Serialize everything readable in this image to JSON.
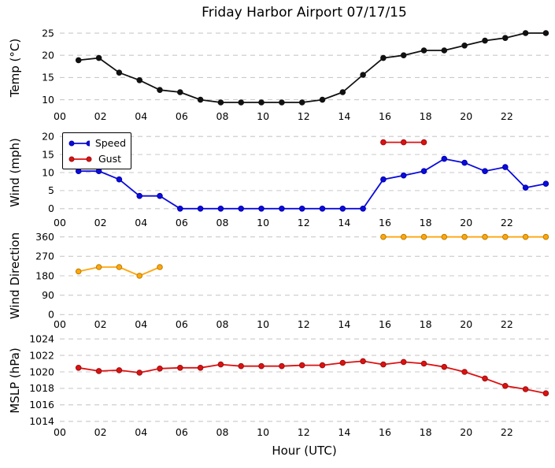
{
  "title": "Friday Harbor Airport 07/17/15",
  "xlabel": "Hour (UTC)",
  "legend": {
    "speed": "Speed",
    "gust": "Gust"
  },
  "colors": {
    "temp": "#111111",
    "speed": "#0b0bdd",
    "speed_edge": "#0000aa",
    "gust": "#dd1111",
    "gust_edge": "#991111",
    "direction": "#ffa60f",
    "direction_edge": "#b97d00",
    "mslp": "#dd1111",
    "mslp_edge": "#991111",
    "grid": "#c9c9c9",
    "tick_text": "#000000"
  },
  "chart_data": [
    {
      "type": "line",
      "ylabel": "Temp (°C)",
      "ylim": [
        7.8,
        26.6
      ],
      "yticks": [
        25,
        20,
        15,
        10
      ],
      "grid": true,
      "legend_position": null,
      "xlim": [
        0,
        24.06
      ],
      "xtick_values": [
        0,
        2,
        4,
        6,
        8,
        10,
        12,
        14,
        16,
        18,
        20,
        22
      ],
      "xtick_labels": [
        "00",
        "02",
        "04",
        "06",
        "08",
        "10",
        "12",
        "14",
        "16",
        "18",
        "20",
        "22"
      ],
      "x": [
        0.92,
        1.92,
        2.92,
        3.92,
        4.92,
        5.92,
        6.92,
        7.92,
        8.92,
        9.92,
        10.92,
        11.92,
        12.92,
        13.92,
        14.92,
        15.92,
        16.92,
        17.92,
        18.92,
        19.92,
        20.92,
        21.92,
        22.92,
        23.92
      ],
      "series": [
        {
          "name": "temp",
          "color_key": "temp",
          "edge_key": "temp",
          "values": [
            18.9,
            19.4,
            16.1,
            14.4,
            12.2,
            11.7,
            10.0,
            9.4,
            9.4,
            9.4,
            9.4,
            9.4,
            10.0,
            11.7,
            15.6,
            19.4,
            20.0,
            21.1,
            21.1,
            22.2,
            23.3,
            23.9,
            25.0,
            25.0
          ]
        }
      ]
    },
    {
      "type": "line",
      "ylabel": "Wind (mph)",
      "ylim": [
        -1.8,
        21.8
      ],
      "yticks": [
        20,
        15,
        10,
        5,
        0
      ],
      "grid": true,
      "legend_position": "upper left",
      "xlim": [
        0,
        24.06
      ],
      "xtick_values": [
        0,
        2,
        4,
        6,
        8,
        10,
        12,
        14,
        16,
        18,
        20,
        22
      ],
      "xtick_labels": [
        "00",
        "02",
        "04",
        "06",
        "08",
        "10",
        "12",
        "14",
        "16",
        "18",
        "20",
        "22"
      ],
      "x": [
        0.92,
        1.92,
        2.92,
        3.92,
        4.92,
        5.92,
        6.92,
        7.92,
        8.92,
        9.92,
        10.92,
        11.92,
        12.92,
        13.92,
        14.92,
        15.92,
        16.92,
        17.92,
        18.92,
        19.92,
        20.92,
        21.92,
        22.92,
        23.92
      ],
      "series": [
        {
          "name": "speed",
          "color_key": "speed",
          "edge_key": "speed_edge",
          "values": [
            10.4,
            10.4,
            8.1,
            3.5,
            3.5,
            0,
            0,
            0,
            0,
            0,
            0,
            0,
            0,
            0,
            0,
            8.1,
            9.2,
            10.4,
            13.8,
            12.7,
            10.4,
            11.5,
            5.8,
            6.9
          ]
        },
        {
          "name": "gust",
          "color_key": "gust",
          "edge_key": "gust_edge",
          "x": [
            15.92,
            16.92,
            17.92
          ],
          "values": [
            18.4,
            18.4,
            18.4
          ]
        }
      ]
    },
    {
      "type": "line",
      "ylabel": "Wind Direction",
      "ylim": [
        -28,
        388
      ],
      "yticks": [
        360,
        270,
        180,
        90,
        0
      ],
      "grid": true,
      "legend_position": null,
      "xlim": [
        0,
        24.06
      ],
      "xtick_values": [
        0,
        2,
        4,
        6,
        8,
        10,
        12,
        14,
        16,
        18,
        20,
        22
      ],
      "xtick_labels": [
        "00",
        "02",
        "04",
        "06",
        "08",
        "10",
        "12",
        "14",
        "16",
        "18",
        "20",
        "22"
      ],
      "x": [
        0.92,
        1.92,
        2.92,
        3.92,
        4.92,
        5.92,
        6.92,
        7.92,
        8.92,
        9.92,
        10.92,
        11.92,
        12.92,
        13.92,
        14.92,
        15.92,
        16.92,
        17.92,
        18.92,
        19.92,
        20.92,
        21.92,
        22.92,
        23.92
      ],
      "series": [
        {
          "name": "direction",
          "color_key": "direction",
          "edge_key": "direction_edge",
          "values": [
            200,
            220,
            220,
            180,
            220,
            null,
            null,
            null,
            null,
            null,
            null,
            null,
            null,
            null,
            null,
            360,
            360,
            360,
            360,
            360,
            360,
            360,
            360,
            360
          ]
        }
      ]
    },
    {
      "type": "line",
      "ylabel": "MSLP (hPa)",
      "ylim": [
        1013.5,
        1024.3
      ],
      "yticks": [
        1024,
        1022,
        1020,
        1018,
        1016,
        1014
      ],
      "grid": true,
      "legend_position": null,
      "xlim": [
        0,
        24.06
      ],
      "xtick_values": [
        0,
        2,
        4,
        6,
        8,
        10,
        12,
        14,
        16,
        18,
        20,
        22
      ],
      "xtick_labels": [
        "00",
        "02",
        "04",
        "06",
        "08",
        "10",
        "12",
        "14",
        "16",
        "18",
        "20",
        "22"
      ],
      "x": [
        0.92,
        1.92,
        2.92,
        3.92,
        4.92,
        5.92,
        6.92,
        7.92,
        8.92,
        9.92,
        10.92,
        11.92,
        12.92,
        13.92,
        14.92,
        15.92,
        16.92,
        17.92,
        18.92,
        19.92,
        20.92,
        21.92,
        22.92,
        23.92
      ],
      "series": [
        {
          "name": "mslp",
          "color_key": "mslp",
          "edge_key": "mslp_edge",
          "values": [
            1020.5,
            1020.1,
            1020.2,
            1019.9,
            1020.4,
            1020.5,
            1020.5,
            1020.9,
            1020.7,
            1020.7,
            1020.7,
            1020.8,
            1020.8,
            1021.1,
            1021.3,
            1020.9,
            1021.2,
            1021.0,
            1020.6,
            1020.0,
            1019.2,
            1018.3,
            1017.9,
            1017.4
          ]
        }
      ]
    }
  ]
}
